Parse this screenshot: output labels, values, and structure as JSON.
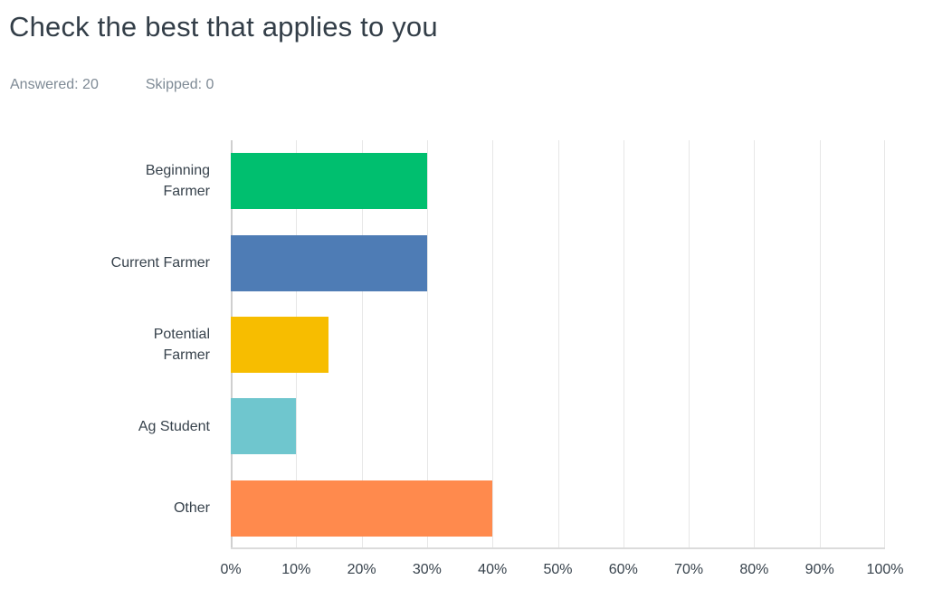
{
  "header": {
    "title": "Check the best that applies to you",
    "answered": "Answered: 20",
    "skipped": "Skipped: 0"
  },
  "chart_data": {
    "type": "bar",
    "orientation": "horizontal",
    "title": "Check the best that applies to you",
    "categories": [
      "Beginning Farmer",
      "Current Farmer",
      "Potential Farmer",
      "Ag Student",
      "Other"
    ],
    "values": [
      30,
      30,
      15,
      10,
      40
    ],
    "unit": "%",
    "bar_colors": [
      "#00BF6F",
      "#4E7CB5",
      "#F7BD00",
      "#6FC6CE",
      "#FF8A4D"
    ],
    "label_lines": [
      [
        "Beginning",
        "Farmer"
      ],
      [
        "Current Farmer"
      ],
      [
        "Potential",
        "Farmer"
      ],
      [
        "Ag Student"
      ],
      [
        "Other"
      ]
    ],
    "x_ticks": [
      "0%",
      "10%",
      "20%",
      "30%",
      "40%",
      "50%",
      "60%",
      "70%",
      "80%",
      "90%",
      "100%"
    ],
    "xlim": [
      0,
      100
    ],
    "grid": true,
    "legend": false,
    "colors": {
      "title_text": "#333E48",
      "stats_text": "#7E8A95",
      "axis_text": "#37424C",
      "gridline": "#E7E7E7",
      "axis_line": "#DBDBDB"
    }
  }
}
